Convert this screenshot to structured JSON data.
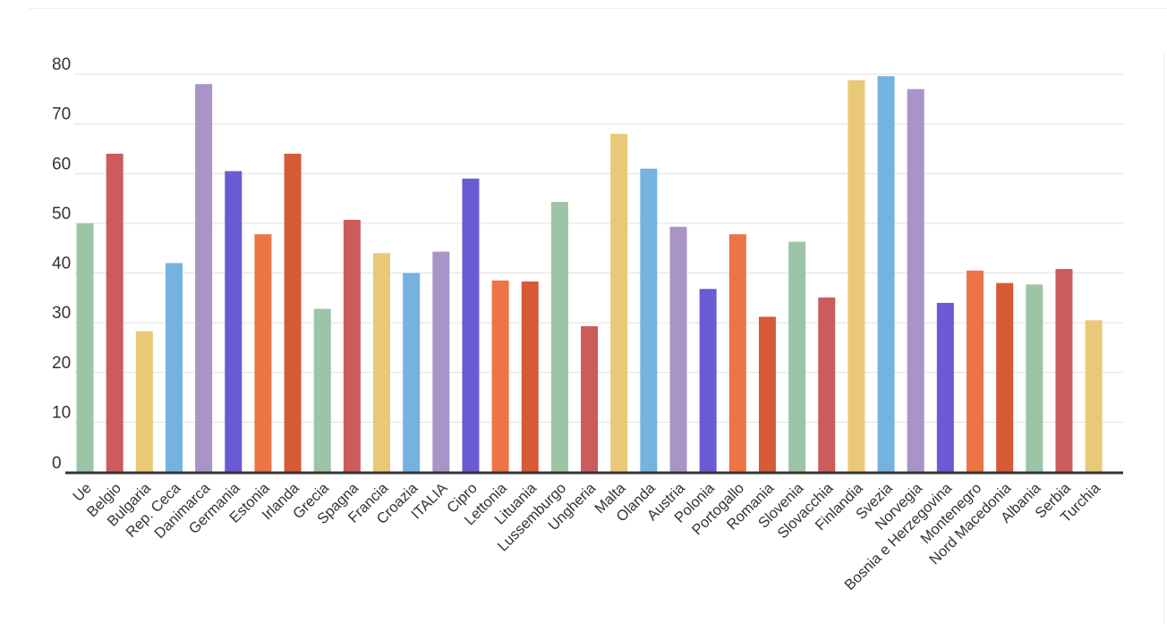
{
  "chart_data": {
    "type": "bar",
    "categories": [
      "Ue",
      "Belgio",
      "Bulgaria",
      "Rep. Ceca",
      "Danimarca",
      "Germania",
      "Estonia",
      "Irlanda",
      "Grecia",
      "Spagna",
      "Francia",
      "Croazia",
      "ITALIA",
      "Cipro",
      "Lettonia",
      "Lituania",
      "Lussemburgo",
      "Ungheria",
      "Malta",
      "Olanda",
      "Austria",
      "Polonia",
      "Portogallo",
      "Romania",
      "Slovenia",
      "Slovacchia",
      "Finlandia",
      "Svezia",
      "Norvegia",
      "Bosnia e Herzegovina",
      "Montenegro",
      "Nord Macedonia",
      "Albania",
      "Serbia",
      "Turchia"
    ],
    "values": [
      50,
      64,
      28.3,
      42,
      78,
      60.5,
      47.8,
      64,
      32.8,
      50.7,
      44,
      40,
      44.3,
      59,
      38.5,
      38.3,
      54.3,
      29.3,
      68,
      61,
      49.3,
      36.8,
      47.8,
      31.2,
      46.3,
      35.1,
      78.8,
      79.6,
      77,
      34,
      40.5,
      38,
      37.7,
      40.8,
      30.5
    ],
    "colors": [
      "#9cc4a7",
      "#cc5b5b",
      "#e9c977",
      "#74b3e0",
      "#a894c6",
      "#6a5ad4",
      "#ec7445",
      "#d65a35",
      "#9cc4a7",
      "#cc5b5b",
      "#e9c977",
      "#74b3e0",
      "#a894c6",
      "#6a5ad4",
      "#ec7445",
      "#d65a35",
      "#9cc4a7",
      "#cc5b5b",
      "#e9c977",
      "#74b3e0",
      "#a894c6",
      "#6a5ad4",
      "#ec7445",
      "#d65a35",
      "#9cc4a7",
      "#cc5b5b",
      "#e9c977",
      "#74b3e0",
      "#a894c6",
      "#6a5ad4",
      "#ec7445",
      "#d65a35",
      "#9cc4a7",
      "#cc5b5b",
      "#e9c977"
    ],
    "yticks": [
      "0",
      "10",
      "20",
      "30",
      "40",
      "50",
      "60",
      "70",
      "80"
    ],
    "ylim": [
      0,
      80
    ],
    "grid": true,
    "legend": "none",
    "gridColor": "#e0e0e0",
    "axisColor": "#333333"
  }
}
